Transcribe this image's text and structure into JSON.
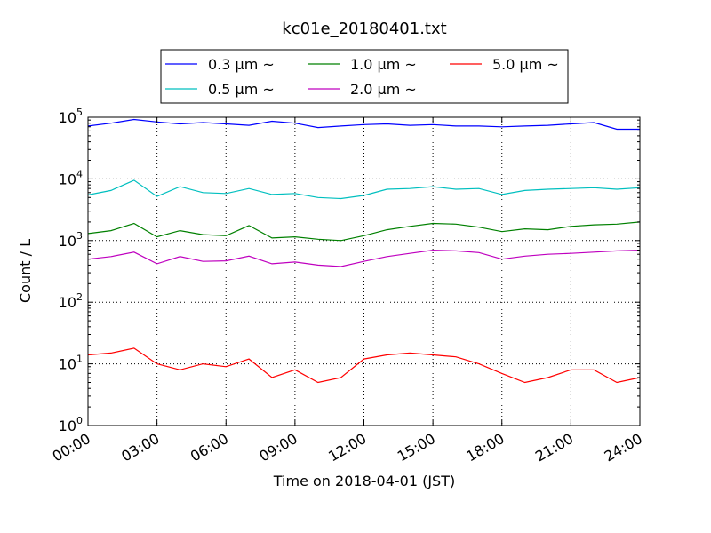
{
  "chart_data": {
    "type": "line",
    "title": "kc01e_20180401.txt",
    "xlabel": "Time on 2018-04-01 (JST)",
    "ylabel": "Count / L",
    "yscale": "log",
    "ylim": [
      1,
      100000
    ],
    "xlim_hours": [
      0,
      24
    ],
    "grid": true,
    "legend_placement": "top-center, above plot",
    "x_tick_labels": [
      "00:00",
      "03:00",
      "06:00",
      "09:00",
      "12:00",
      "15:00",
      "18:00",
      "21:00",
      "24:00"
    ],
    "y_ticks": [
      {
        "base": "10",
        "exp": "0"
      },
      {
        "base": "10",
        "exp": "1"
      },
      {
        "base": "10",
        "exp": "2"
      },
      {
        "base": "10",
        "exp": "3"
      },
      {
        "base": "10",
        "exp": "4"
      },
      {
        "base": "10",
        "exp": "5"
      }
    ],
    "x_hours": [
      0,
      1,
      2,
      3,
      4,
      5,
      6,
      7,
      8,
      9,
      10,
      11,
      12,
      13,
      14,
      15,
      16,
      17,
      18,
      19,
      20,
      21,
      22,
      23,
      24
    ],
    "series": [
      {
        "name": "0.3 μm ~",
        "color": "#0000ff",
        "values": [
          72000,
          80000,
          92000,
          84000,
          78000,
          82000,
          78000,
          74000,
          86000,
          80000,
          68000,
          72000,
          76000,
          78000,
          74000,
          76000,
          72000,
          72000,
          70000,
          72000,
          74000,
          78000,
          82000,
          64000,
          64000
        ]
      },
      {
        "name": "0.5 μm ~",
        "color": "#00bfbf",
        "values": [
          5500,
          6500,
          9500,
          5200,
          7500,
          6000,
          5800,
          7000,
          5600,
          5800,
          5000,
          4800,
          5400,
          6800,
          7000,
          7500,
          6800,
          7000,
          5600,
          6500,
          6800,
          7000,
          7200,
          6800,
          7200
        ]
      },
      {
        "name": "1.0 μm ~",
        "color": "#008000",
        "values": [
          1300,
          1450,
          1900,
          1150,
          1450,
          1250,
          1200,
          1750,
          1100,
          1150,
          1050,
          1000,
          1200,
          1500,
          1700,
          1900,
          1850,
          1650,
          1400,
          1550,
          1500,
          1700,
          1800,
          1850,
          2000
        ]
      },
      {
        "name": "2.0 μm ~",
        "color": "#bf00bf",
        "values": [
          500,
          550,
          650,
          420,
          550,
          460,
          470,
          560,
          420,
          450,
          400,
          380,
          460,
          550,
          620,
          700,
          680,
          640,
          500,
          560,
          600,
          620,
          650,
          680,
          700
        ]
      },
      {
        "name": "5.0 μm ~",
        "color": "#ff0000",
        "values": [
          14,
          15,
          18,
          10,
          8,
          10,
          9,
          12,
          6,
          8,
          5,
          6,
          12,
          14,
          15,
          14,
          13,
          10,
          7,
          5,
          6,
          8,
          8,
          5,
          6
        ]
      }
    ]
  }
}
